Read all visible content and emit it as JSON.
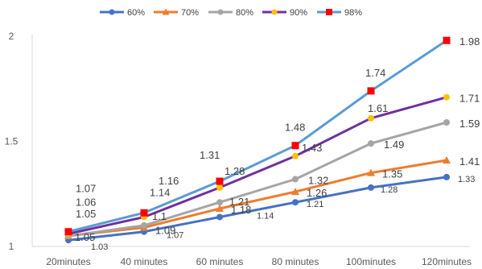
{
  "chart_data": {
    "type": "line",
    "title": "",
    "xlabel": "",
    "ylabel": "",
    "categories": [
      "20minutes",
      "40 minutes",
      "60 minutes",
      "80 minutes",
      "100minutes",
      "120minutes"
    ],
    "ylim": [
      1,
      2
    ],
    "yticks": [
      "1",
      "1.5",
      "2"
    ],
    "grid": false,
    "legend_position": "top",
    "series": [
      {
        "name": "60%",
        "color": "#4472C4",
        "marker": "circle",
        "values": [
          1.03,
          1.07,
          1.14,
          1.21,
          1.28,
          1.33
        ],
        "labels": [
          "1.03",
          "1.07",
          "1.14",
          "1.21",
          "1.28",
          "1.33"
        ]
      },
      {
        "name": "70%",
        "color": "#ED7D31",
        "marker": "triangle",
        "values": [
          1.05,
          1.09,
          1.18,
          1.26,
          1.35,
          1.41
        ],
        "labels": [
          "1.05",
          "1.09",
          "1.18",
          "1.26",
          "1.35",
          "1.41"
        ]
      },
      {
        "name": "80%",
        "color": "#A5A5A5",
        "marker": "circle",
        "values": [
          1.05,
          1.1,
          1.21,
          1.32,
          1.49,
          1.59
        ],
        "labels": [
          "1.05",
          "1.1",
          "1.21",
          "1.32",
          "1.49",
          "1.59"
        ]
      },
      {
        "name": "90%",
        "color": "#7030A0",
        "marker": "circle",
        "markerColor": "#FFC000",
        "values": [
          1.06,
          1.14,
          1.28,
          1.43,
          1.61,
          1.71
        ],
        "labels": [
          "1.06",
          "1.14",
          "1.28",
          "1.43",
          "1.61",
          "1.71"
        ]
      },
      {
        "name": "98%",
        "color": "#5B9BD5",
        "marker": "square",
        "markerColor": "#FF0000",
        "values": [
          1.07,
          1.16,
          1.31,
          1.48,
          1.74,
          1.98
        ],
        "labels": [
          "1.07",
          "1.16",
          "1.31",
          "1.48",
          "1.74",
          "1.98"
        ]
      }
    ]
  }
}
